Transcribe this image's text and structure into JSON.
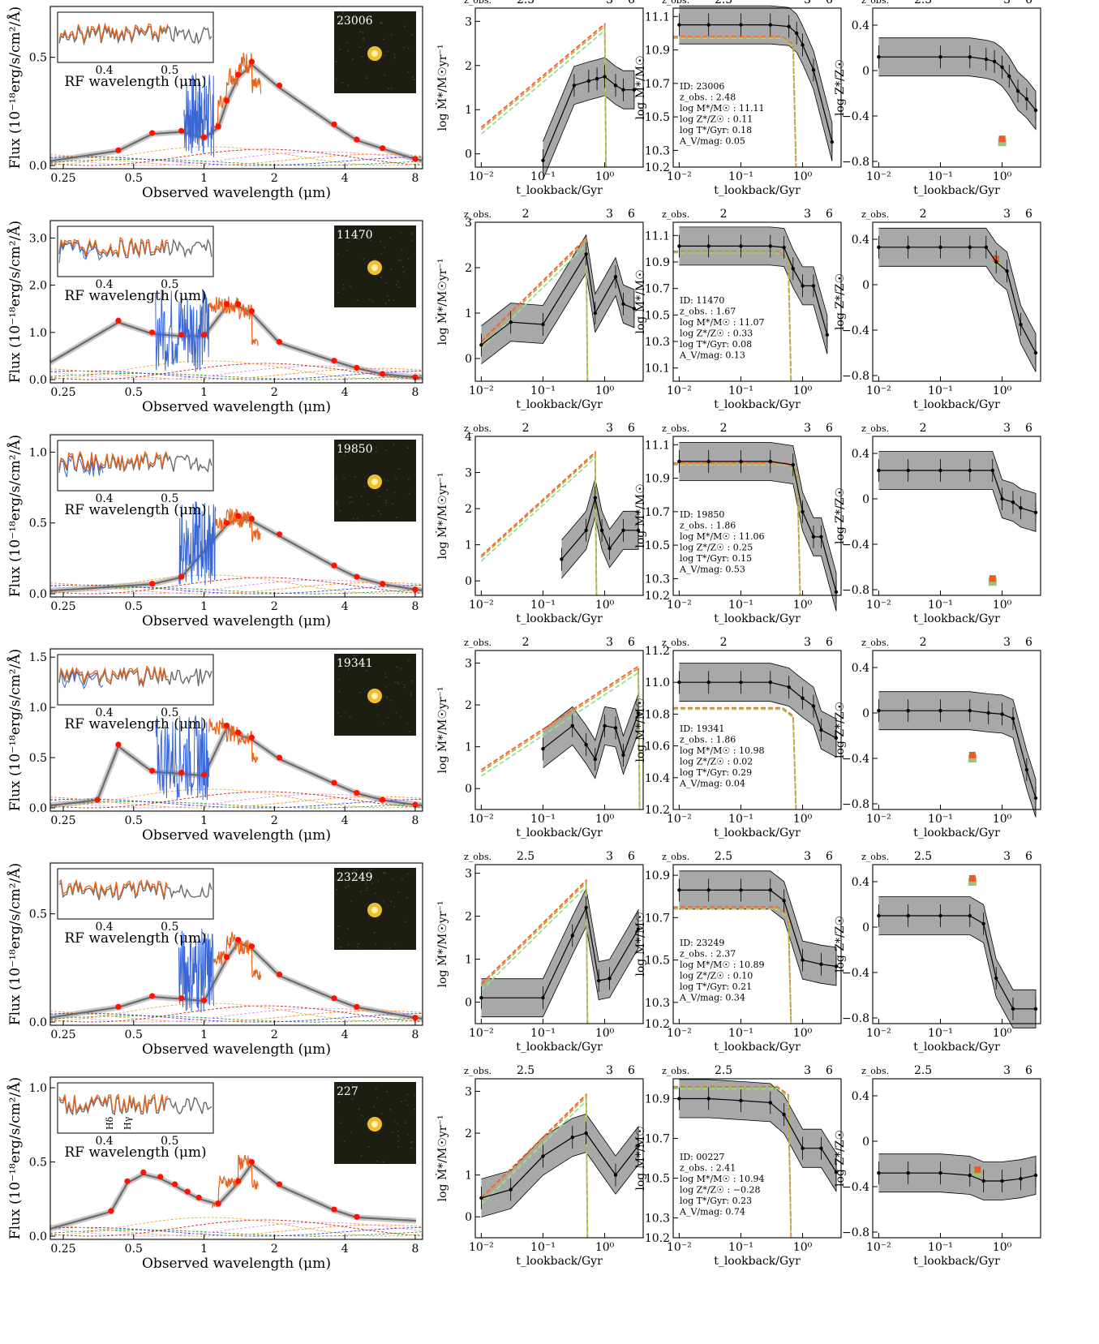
{
  "labels": {
    "flux_ylabel": "Flux (10⁻¹⁸erg/s/cm²/Å)",
    "sed_xlabel": "Observed wavelength (μm)",
    "inset_xlabel": "RF wavelength (μm)",
    "t_xlabel": "t_lookback/Gyr",
    "sfr_ylabel": "log Ṁ*/M☉yr⁻¹",
    "mass_ylabel": "log M*/M☉",
    "z_ylabel": "log Z*/Z☉",
    "zobs_label": "z_obs."
  },
  "sed_xticks": [
    "0.25",
    "0.5",
    "1",
    "2",
    "4",
    "8"
  ],
  "t_ticks": [
    "10⁻²",
    "10⁻¹",
    "10⁰"
  ],
  "metal_yticks": [
    "0.4",
    "0",
    "−0.4",
    "−0.8"
  ],
  "colors": {
    "photometry": "#ff1100",
    "spectrum_orange": "#e8621a",
    "spectrum_blue": "#3a67d8",
    "model": "#6b6b6b",
    "band": "#9a9a9a",
    "red_dash": "#ff5a2a",
    "green_dash": "#96e096",
    "olive_dash": "#c0aa42"
  },
  "chart_data": [
    {
      "id": "23006",
      "type": "line",
      "inset_ticks": [
        "0.4",
        "0.5"
      ],
      "flux_yticks": [
        "0.0",
        "0.5"
      ],
      "flux_ymax": 0.72,
      "phot": [
        [
          0.43,
          0.07
        ],
        [
          0.6,
          0.15
        ],
        [
          0.8,
          0.16
        ],
        [
          1.0,
          0.13
        ],
        [
          1.15,
          0.18
        ],
        [
          1.25,
          0.3
        ],
        [
          1.4,
          0.42
        ],
        [
          1.6,
          0.48
        ],
        [
          2.1,
          0.37
        ],
        [
          3.6,
          0.19
        ],
        [
          4.5,
          0.12
        ],
        [
          5.8,
          0.08
        ],
        [
          8.0,
          0.03
        ]
      ],
      "inset_spec": "orange",
      "spec_blue_range": [
        0.82,
        1.1
      ],
      "spec_orange_range": [
        1.1,
        1.75
      ],
      "sfr_yticks": [
        "0",
        "1",
        "2",
        "3"
      ],
      "sfr_ylim": [
        -0.3,
        3.3
      ],
      "sfr_median": [
        [
          0.1,
          -0.15
        ],
        [
          0.32,
          1.55
        ],
        [
          0.55,
          1.65
        ],
        [
          0.75,
          1.7
        ],
        [
          1.0,
          1.75
        ],
        [
          1.5,
          1.55
        ],
        [
          2.0,
          1.45
        ],
        [
          3.0,
          1.45
        ]
      ],
      "mass_yticks": [
        "10.2",
        "10.3",
        "10.5",
        "10.7",
        "10.9",
        "11.1"
      ],
      "mass_ylim": [
        10.2,
        11.15
      ],
      "mass_median": [
        [
          0.01,
          11.05
        ],
        [
          0.03,
          11.05
        ],
        [
          0.1,
          11.05
        ],
        [
          0.3,
          11.05
        ],
        [
          0.6,
          11.04
        ],
        [
          0.8,
          11.0
        ],
        [
          1.0,
          10.93
        ],
        [
          1.5,
          10.78
        ],
        [
          3.0,
          10.35
        ]
      ],
      "mass_dash": 10.98,
      "zobs_ticks": [
        "2.5",
        "3",
        "6"
      ],
      "info": [
        "ID: 23006",
        "z_obs. : 2.48",
        "log M*/M☉ : 11.11",
        "log Z*/Z☉ : 0.11",
        "log T*/Gyr: 0.18",
        "A_V/mag: 0.05"
      ],
      "metal_median": [
        [
          0.01,
          0.12
        ],
        [
          0.1,
          0.12
        ],
        [
          0.3,
          0.12
        ],
        [
          0.55,
          0.1
        ],
        [
          0.75,
          0.08
        ],
        [
          1.0,
          0.03
        ],
        [
          1.3,
          -0.05
        ],
        [
          1.8,
          -0.18
        ],
        [
          2.5,
          -0.25
        ],
        [
          3.5,
          -0.35
        ]
      ],
      "metal_marker": [
        1.0,
        -0.63
      ]
    },
    {
      "id": "11470",
      "type": "line",
      "inset_ticks": [
        "0.4",
        "0.5"
      ],
      "flux_yticks": [
        "0.0",
        "1.0",
        "2.0",
        "3.0"
      ],
      "flux_ymax": 3.3,
      "phot": [
        [
          0.43,
          1.25
        ],
        [
          0.6,
          1.0
        ],
        [
          0.8,
          0.95
        ],
        [
          1.0,
          0.95
        ],
        [
          1.25,
          1.6
        ],
        [
          1.4,
          1.6
        ],
        [
          1.6,
          1.45
        ],
        [
          2.1,
          0.8
        ],
        [
          3.6,
          0.4
        ],
        [
          4.5,
          0.25
        ],
        [
          5.8,
          0.12
        ],
        [
          8.0,
          0.05
        ]
      ],
      "inset_spec": "both",
      "spec_blue_range": [
        0.62,
        1.05
      ],
      "spec_orange_range": [
        1.05,
        1.7
      ],
      "sfr_yticks": [
        "0",
        "1",
        "2",
        "3"
      ],
      "sfr_ylim": [
        -0.5,
        3.0
      ],
      "sfr_median": [
        [
          0.01,
          0.3
        ],
        [
          0.03,
          0.8
        ],
        [
          0.1,
          0.75
        ],
        [
          0.5,
          2.3
        ],
        [
          0.7,
          1.0
        ],
        [
          1.5,
          1.8
        ],
        [
          2.0,
          1.2
        ],
        [
          3.0,
          1.1
        ]
      ],
      "mass_yticks": [
        "10.1",
        "10.3",
        "10.5",
        "10.7",
        "10.9",
        "11.1"
      ],
      "mass_ylim": [
        10.0,
        11.2
      ],
      "mass_median": [
        [
          0.01,
          11.02
        ],
        [
          0.03,
          11.02
        ],
        [
          0.1,
          11.02
        ],
        [
          0.3,
          11.02
        ],
        [
          0.5,
          11.01
        ],
        [
          0.7,
          10.85
        ],
        [
          1.0,
          10.72
        ],
        [
          1.5,
          10.72
        ],
        [
          2.5,
          10.35
        ]
      ],
      "mass_dash": 10.98,
      "zobs_ticks": [
        "2",
        "3",
        "6"
      ],
      "info": [
        "ID: 11470",
        "z_obs. : 1.67",
        "log M*/M☉ : 11.07",
        "log Z*/Z☉ : 0.33",
        "log T*/Gyr: 0.08",
        "A_V/mag: 0.13"
      ],
      "metal_median": [
        [
          0.01,
          0.33
        ],
        [
          0.03,
          0.33
        ],
        [
          0.1,
          0.33
        ],
        [
          0.3,
          0.33
        ],
        [
          0.55,
          0.33
        ],
        [
          0.8,
          0.2
        ],
        [
          1.2,
          0.12
        ],
        [
          2.0,
          -0.35
        ],
        [
          3.5,
          -0.6
        ]
      ],
      "metal_marker": [
        0.8,
        0.2
      ]
    },
    {
      "id": "19850",
      "type": "line",
      "inset_ticks": [
        "0.4",
        "0.5"
      ],
      "flux_yticks": [
        "0.0",
        "0.5",
        "1.0"
      ],
      "flux_ymax": 1.1,
      "phot": [
        [
          0.6,
          0.07
        ],
        [
          0.8,
          0.12
        ],
        [
          1.25,
          0.5
        ],
        [
          1.4,
          0.55
        ],
        [
          1.6,
          0.53
        ],
        [
          2.1,
          0.42
        ],
        [
          3.6,
          0.2
        ],
        [
          4.5,
          0.12
        ],
        [
          5.8,
          0.07
        ],
        [
          8.0,
          0.03
        ]
      ],
      "inset_spec": "both",
      "spec_blue_range": [
        0.78,
        1.12
      ],
      "spec_orange_range": [
        1.12,
        1.75
      ],
      "sfr_yticks": [
        "0",
        "1",
        "2",
        "3",
        "4"
      ],
      "sfr_ylim": [
        -0.4,
        4.0
      ],
      "sfr_median": [
        [
          0.2,
          0.6
        ],
        [
          0.5,
          1.4
        ],
        [
          0.7,
          2.3
        ],
        [
          0.9,
          1.4
        ],
        [
          1.2,
          0.9
        ],
        [
          2.0,
          1.4
        ],
        [
          3.5,
          1.4
        ]
      ],
      "mass_yticks": [
        "10.2",
        "10.3",
        "10.5",
        "10.7",
        "10.9",
        "11.1"
      ],
      "mass_ylim": [
        10.2,
        11.15
      ],
      "mass_median": [
        [
          0.01,
          11.0
        ],
        [
          0.03,
          11.0
        ],
        [
          0.1,
          11.0
        ],
        [
          0.3,
          11.0
        ],
        [
          0.7,
          10.98
        ],
        [
          1.0,
          10.7
        ],
        [
          1.5,
          10.55
        ],
        [
          2.0,
          10.55
        ],
        [
          3.5,
          10.22
        ]
      ],
      "mass_dash": 10.99,
      "zobs_ticks": [
        "2",
        "3",
        "6"
      ],
      "info": [
        "ID: 19850",
        "z_obs. : 1.86",
        "log M*/M☉ : 11.06",
        "log Z*/Z☉ : 0.25",
        "log T*/Gyr: 0.15",
        "A_V/mag: 0.53"
      ],
      "metal_median": [
        [
          0.01,
          0.25
        ],
        [
          0.03,
          0.25
        ],
        [
          0.1,
          0.25
        ],
        [
          0.3,
          0.25
        ],
        [
          0.7,
          0.25
        ],
        [
          1.0,
          0.0
        ],
        [
          1.5,
          -0.03
        ],
        [
          2.0,
          -0.08
        ],
        [
          3.5,
          -0.12
        ]
      ],
      "metal_marker": [
        0.7,
        -0.73
      ]
    },
    {
      "id": "19341",
      "type": "line",
      "inset_ticks": [
        "0.4",
        "0.5"
      ],
      "flux_yticks": [
        "0.0",
        "0.5",
        "1.0",
        "1.5"
      ],
      "flux_ymax": 1.55,
      "phot": [
        [
          0.35,
          0.08
        ],
        [
          0.43,
          0.63
        ],
        [
          0.6,
          0.37
        ],
        [
          0.8,
          0.35
        ],
        [
          1.0,
          0.33
        ],
        [
          1.25,
          0.82
        ],
        [
          1.4,
          0.75
        ],
        [
          1.6,
          0.7
        ],
        [
          2.1,
          0.5
        ],
        [
          3.6,
          0.25
        ],
        [
          4.5,
          0.15
        ],
        [
          5.8,
          0.08
        ],
        [
          8.0,
          0.03
        ]
      ],
      "inset_spec": "both",
      "spec_blue_range": [
        0.62,
        1.05
      ],
      "spec_orange_range": [
        1.05,
        1.7
      ],
      "sfr_yticks": [
        "0",
        "1",
        "2",
        "3"
      ],
      "sfr_ylim": [
        -0.5,
        3.3
      ],
      "sfr_median": [
        [
          0.1,
          0.95
        ],
        [
          0.3,
          1.5
        ],
        [
          0.5,
          1.05
        ],
        [
          0.7,
          0.7
        ],
        [
          1.0,
          1.5
        ],
        [
          1.5,
          1.45
        ],
        [
          2.0,
          0.8
        ],
        [
          3.5,
          1.8
        ]
      ],
      "mass_yticks": [
        "10.2",
        "10.4",
        "10.6",
        "10.8",
        "11.0",
        "11.2"
      ],
      "mass_ylim": [
        10.2,
        11.2
      ],
      "mass_median": [
        [
          0.01,
          11.0
        ],
        [
          0.03,
          11.0
        ],
        [
          0.1,
          11.0
        ],
        [
          0.3,
          11.0
        ],
        [
          0.6,
          10.97
        ],
        [
          1.0,
          10.9
        ],
        [
          1.5,
          10.85
        ],
        [
          2.0,
          10.7
        ],
        [
          3.5,
          10.65
        ]
      ],
      "mass_dash": 10.84,
      "zobs_ticks": [
        "2",
        "3",
        "6"
      ],
      "info": [
        "ID: 19341",
        "z_obs. : 1.86",
        "log M*/M☉ : 10.98",
        "log Z*/Z☉ : 0.02",
        "log T*/Gyr: 0.29",
        "A_V/mag: 0.04"
      ],
      "metal_median": [
        [
          0.01,
          0.02
        ],
        [
          0.03,
          0.02
        ],
        [
          0.1,
          0.02
        ],
        [
          0.3,
          0.02
        ],
        [
          0.6,
          0.0
        ],
        [
          1.0,
          -0.01
        ],
        [
          1.5,
          -0.05
        ],
        [
          2.5,
          -0.5
        ],
        [
          3.5,
          -0.75
        ]
      ],
      "metal_marker": [
        0.33,
        -0.4
      ]
    },
    {
      "id": "23249",
      "type": "line",
      "inset_ticks": [
        "0.4",
        "0.5"
      ],
      "flux_yticks": [
        "0.0",
        "0.5"
      ],
      "flux_ymax": 0.72,
      "phot": [
        [
          0.43,
          0.07
        ],
        [
          0.6,
          0.12
        ],
        [
          0.8,
          0.11
        ],
        [
          1.0,
          0.1
        ],
        [
          1.25,
          0.3
        ],
        [
          1.4,
          0.38
        ],
        [
          1.6,
          0.35
        ],
        [
          2.1,
          0.22
        ],
        [
          3.6,
          0.11
        ],
        [
          4.5,
          0.07
        ],
        [
          8.0,
          0.02
        ]
      ],
      "inset_spec": "orange",
      "spec_blue_range": [
        0.78,
        1.1
      ],
      "spec_orange_range": [
        1.1,
        1.75
      ],
      "sfr_yticks": [
        "0",
        "1",
        "2",
        "3"
      ],
      "sfr_ylim": [
        -0.5,
        3.2
      ],
      "sfr_median": [
        [
          0.01,
          0.1
        ],
        [
          0.1,
          0.1
        ],
        [
          0.3,
          1.55
        ],
        [
          0.5,
          2.2
        ],
        [
          0.8,
          0.5
        ],
        [
          1.2,
          0.55
        ],
        [
          3.5,
          1.7
        ]
      ],
      "mass_yticks": [
        "10.2",
        "10.3",
        "10.5",
        "10.7",
        "10.9"
      ],
      "mass_ylim": [
        10.2,
        10.95
      ],
      "mass_median": [
        [
          0.01,
          10.83
        ],
        [
          0.03,
          10.83
        ],
        [
          0.1,
          10.83
        ],
        [
          0.3,
          10.83
        ],
        [
          0.5,
          10.78
        ],
        [
          1.0,
          10.5
        ],
        [
          2.0,
          10.48
        ],
        [
          3.5,
          10.47
        ]
      ],
      "mass_dash": 10.75,
      "zobs_ticks": [
        "2.5",
        "3",
        "6"
      ],
      "info": [
        "ID: 23249",
        "z_obs. : 2.37",
        "log M*/M☉ : 10.89",
        "log Z*/Z☉ : 0.10",
        "log T*/Gyr: 0.21",
        "A_V/mag: 0.34"
      ],
      "metal_median": [
        [
          0.01,
          0.1
        ],
        [
          0.03,
          0.1
        ],
        [
          0.1,
          0.1
        ],
        [
          0.3,
          0.1
        ],
        [
          0.5,
          0.03
        ],
        [
          0.8,
          -0.45
        ],
        [
          1.5,
          -0.72
        ],
        [
          3.5,
          -0.72
        ]
      ],
      "metal_marker": [
        0.33,
        0.4
      ]
    },
    {
      "id": "227",
      "type": "line",
      "inset_ticks": [
        "0.4",
        "0.5"
      ],
      "inset_lines": [
        "Hδ",
        "Hγ"
      ],
      "flux_yticks": [
        "0.0",
        "0.5",
        "1.0"
      ],
      "flux_ymax": 1.05,
      "phot": [
        [
          0.4,
          0.17
        ],
        [
          0.47,
          0.37
        ],
        [
          0.55,
          0.43
        ],
        [
          0.65,
          0.4
        ],
        [
          0.75,
          0.35
        ],
        [
          0.85,
          0.3
        ],
        [
          0.95,
          0.26
        ],
        [
          1.15,
          0.22
        ],
        [
          1.4,
          0.37
        ],
        [
          1.6,
          0.5
        ],
        [
          2.1,
          0.35
        ],
        [
          3.6,
          0.18
        ],
        [
          4.5,
          0.13
        ]
      ],
      "inset_spec": "orange",
      "spec_blue_range": [
        1.0,
        1.0
      ],
      "spec_orange_range": [
        1.08,
        1.7
      ],
      "sfr_yticks": [
        "0",
        "1",
        "2",
        "3"
      ],
      "sfr_ylim": [
        -0.5,
        3.3
      ],
      "sfr_median": [
        [
          0.01,
          0.45
        ],
        [
          0.03,
          0.65
        ],
        [
          0.1,
          1.45
        ],
        [
          0.3,
          1.9
        ],
        [
          0.5,
          2.0
        ],
        [
          1.5,
          1.0
        ],
        [
          3.5,
          1.7
        ]
      ],
      "mass_yticks": [
        "10.2",
        "10.3",
        "10.5",
        "10.7",
        "10.9"
      ],
      "mass_ylim": [
        10.2,
        11.0
      ],
      "mass_median": [
        [
          0.01,
          10.9
        ],
        [
          0.03,
          10.9
        ],
        [
          0.1,
          10.89
        ],
        [
          0.3,
          10.88
        ],
        [
          0.5,
          10.82
        ],
        [
          1.0,
          10.65
        ],
        [
          2.0,
          10.65
        ],
        [
          3.5,
          10.53
        ]
      ],
      "mass_dash": 10.96,
      "zobs_ticks": [
        "2.5",
        "3",
        "6"
      ],
      "info": [
        "ID: 00227",
        "z_obs. : 2.41",
        "log M*/M☉ : 10.94",
        "log Z*/Z☉ : −0.28",
        "log T*/Gyr: 0.23",
        "A_V/mag: 0.74"
      ],
      "metal_median": [
        [
          0.01,
          -0.28
        ],
        [
          0.03,
          -0.28
        ],
        [
          0.1,
          -0.28
        ],
        [
          0.3,
          -0.3
        ],
        [
          0.5,
          -0.35
        ],
        [
          1.0,
          -0.35
        ],
        [
          2.0,
          -0.33
        ],
        [
          3.5,
          -0.3
        ]
      ],
      "metal_marker": [
        0.4,
        -0.28
      ]
    }
  ]
}
